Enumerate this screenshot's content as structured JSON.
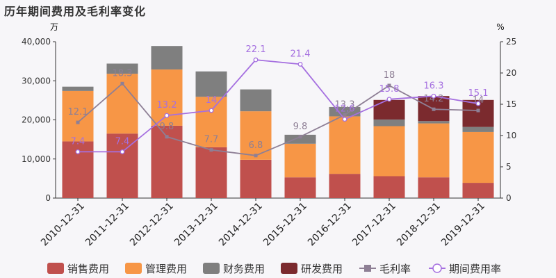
{
  "chart_data": {
    "type": "bar",
    "title": "历年期间费用及毛利率变化",
    "y_left_unit": "万",
    "y_right_unit": "%",
    "y_left_lim": [
      0,
      40000
    ],
    "y_left_ticks": [
      "0",
      "10,000",
      "20,000",
      "30,000",
      "40,000"
    ],
    "y_right_lim": [
      0,
      25
    ],
    "y_right_ticks": [
      "0",
      "5",
      "10",
      "15",
      "20",
      "25"
    ],
    "categories": [
      "2010-12-31",
      "2011-12-31",
      "2012-12-31",
      "2013-12-31",
      "2014-12-31",
      "2015-12-31",
      "2016-12-31",
      "2017-12-31",
      "2018-12-31",
      "2019-12-31"
    ],
    "bar_series": [
      {
        "name": "销售费用",
        "color": "#c0504d",
        "values": [
          14500,
          16500,
          18500,
          13000,
          9800,
          5300,
          6200,
          5600,
          5300,
          3900
        ]
      },
      {
        "name": "管理费用",
        "color": "#f79646",
        "values": [
          12900,
          15300,
          14400,
          12900,
          12400,
          8600,
          14700,
          12800,
          13800,
          13000
        ]
      },
      {
        "name": "财务费用",
        "color": "#7f7f7f",
        "values": [
          1100,
          2600,
          6000,
          6500,
          5600,
          2300,
          2400,
          1700,
          600,
          1300
        ]
      },
      {
        "name": "研发费用",
        "color": "#7b2a2e",
        "values": [
          0,
          0,
          0,
          0,
          0,
          0,
          0,
          5000,
          6400,
          6900
        ]
      }
    ],
    "line_series": [
      {
        "name": "毛利率",
        "color": "#8e7f95",
        "marker": "square",
        "values": [
          12.1,
          18.3,
          9.8,
          7.7,
          6.8,
          9.8,
          13.3,
          18,
          14.2,
          14
        ],
        "labels": [
          "12.1",
          "18.3",
          "9.8",
          "7.7",
          "6.8",
          "9.8",
          "13.3",
          "18",
          "14.2",
          "14"
        ]
      },
      {
        "name": "期间费用率",
        "color": "#a56fe0",
        "marker": "circle",
        "values": [
          7.4,
          7.4,
          13.2,
          14,
          22.1,
          21.4,
          12.6,
          15.8,
          16.3,
          15.1
        ],
        "labels": [
          "7.4",
          "7.4",
          "13.2",
          "14",
          "22.1",
          "21.4",
          "12.6",
          "15.8",
          "16.3",
          "15.1"
        ]
      }
    ],
    "legend_position": "bottom"
  }
}
